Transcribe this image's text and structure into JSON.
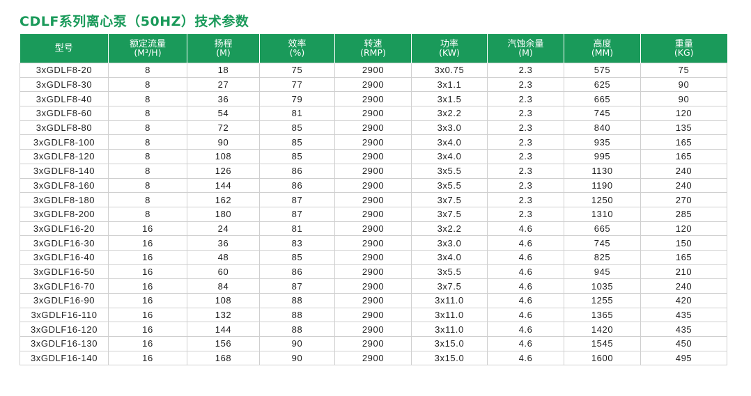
{
  "title": "CDLF系列离心泵（50HZ）技术参数",
  "columns": [
    {
      "label": "型号",
      "unit": ""
    },
    {
      "label": "额定流量",
      "unit": "(M³/H)"
    },
    {
      "label": "扬程",
      "unit": "(M)"
    },
    {
      "label": "效率",
      "unit": "(%)"
    },
    {
      "label": "转速",
      "unit": "(RMP)"
    },
    {
      "label": "功率",
      "unit": "(KW)"
    },
    {
      "label": "汽蚀余量",
      "unit": "(M)"
    },
    {
      "label": "高度",
      "unit": "(MM)"
    },
    {
      "label": "重量",
      "unit": "(KG)"
    }
  ],
  "rows": [
    [
      "3xGDLF8-20",
      "8",
      "18",
      "75",
      "2900",
      "3x0.75",
      "2.3",
      "575",
      "75"
    ],
    [
      "3xGDLF8-30",
      "8",
      "27",
      "77",
      "2900",
      "3x1.1",
      "2.3",
      "625",
      "90"
    ],
    [
      "3xGDLF8-40",
      "8",
      "36",
      "79",
      "2900",
      "3x1.5",
      "2.3",
      "665",
      "90"
    ],
    [
      "3xGDLF8-60",
      "8",
      "54",
      "81",
      "2900",
      "3x2.2",
      "2.3",
      "745",
      "120"
    ],
    [
      "3xGDLF8-80",
      "8",
      "72",
      "85",
      "2900",
      "3x3.0",
      "2.3",
      "840",
      "135"
    ],
    [
      "3xGDLF8-100",
      "8",
      "90",
      "85",
      "2900",
      "3x4.0",
      "2.3",
      "935",
      "165"
    ],
    [
      "3xGDLF8-120",
      "8",
      "108",
      "85",
      "2900",
      "3x4.0",
      "2.3",
      "995",
      "165"
    ],
    [
      "3xGDLF8-140",
      "8",
      "126",
      "86",
      "2900",
      "3x5.5",
      "2.3",
      "1130",
      "240"
    ],
    [
      "3xGDLF8-160",
      "8",
      "144",
      "86",
      "2900",
      "3x5.5",
      "2.3",
      "1190",
      "240"
    ],
    [
      "3xGDLF8-180",
      "8",
      "162",
      "87",
      "2900",
      "3x7.5",
      "2.3",
      "1250",
      "270"
    ],
    [
      "3xGDLF8-200",
      "8",
      "180",
      "87",
      "2900",
      "3x7.5",
      "2.3",
      "1310",
      "285"
    ],
    [
      "3xGDLF16-20",
      "16",
      "24",
      "81",
      "2900",
      "3x2.2",
      "4.6",
      "665",
      "120"
    ],
    [
      "3xGDLF16-30",
      "16",
      "36",
      "83",
      "2900",
      "3x3.0",
      "4.6",
      "745",
      "150"
    ],
    [
      "3xGDLF16-40",
      "16",
      "48",
      "85",
      "2900",
      "3x4.0",
      "4.6",
      "825",
      "165"
    ],
    [
      "3xGDLF16-50",
      "16",
      "60",
      "86",
      "2900",
      "3x5.5",
      "4.6",
      "945",
      "210"
    ],
    [
      "3xGDLF16-70",
      "16",
      "84",
      "87",
      "2900",
      "3x7.5",
      "4.6",
      "1035",
      "240"
    ],
    [
      "3xGDLF16-90",
      "16",
      "108",
      "88",
      "2900",
      "3x11.0",
      "4.6",
      "1255",
      "420"
    ],
    [
      "3xGDLF16-110",
      "16",
      "132",
      "88",
      "2900",
      "3x11.0",
      "4.6",
      "1365",
      "435"
    ],
    [
      "3xGDLF16-120",
      "16",
      "144",
      "88",
      "2900",
      "3x11.0",
      "4.6",
      "1420",
      "435"
    ],
    [
      "3xGDLF16-130",
      "16",
      "156",
      "90",
      "2900",
      "3x15.0",
      "4.6",
      "1545",
      "450"
    ],
    [
      "3xGDLF16-140",
      "16",
      "168",
      "90",
      "2900",
      "3x15.0",
      "4.6",
      "1600",
      "495"
    ]
  ],
  "colors": {
    "header_bg": "#1a9a5a",
    "title": "#1a9a5a",
    "grid": "#cfcfcf"
  }
}
